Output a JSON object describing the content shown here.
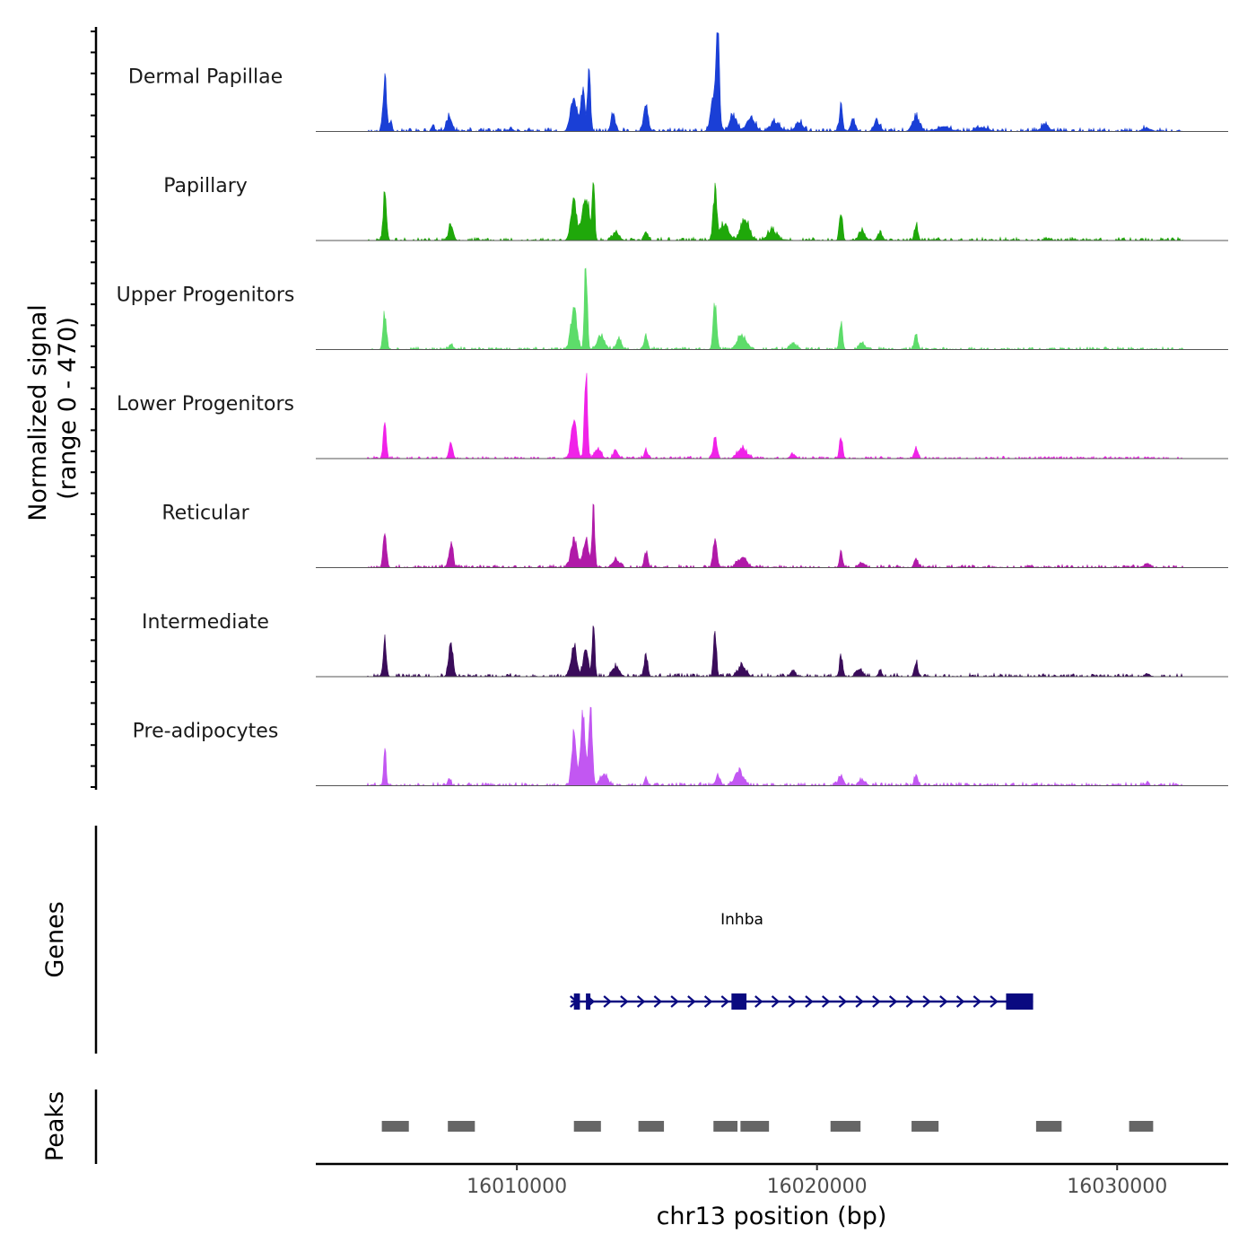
{
  "chart_data": {
    "type": "area",
    "title": "",
    "y_axis_label_line1": "Normalized signal",
    "y_axis_label_line2": "(range 0 - 470)",
    "ylim": [
      0,
      470
    ],
    "x_axis_label": "chr13 position (bp)",
    "xlim": [
      16003300,
      16033700
    ],
    "x_ticks": [
      {
        "value": 16010000,
        "label": "16010000"
      },
      {
        "value": 16020000,
        "label": "16020000"
      },
      {
        "value": 16030000,
        "label": "16030000"
      }
    ],
    "tracks": [
      {
        "name": "Dermal Papillae",
        "color": "#1a3fd6",
        "noise": 0.035,
        "seed": 11,
        "peaks": [
          [
            16005600,
            0.52,
            60
          ],
          [
            16005800,
            0.12,
            40
          ],
          [
            16007200,
            0.06,
            50
          ],
          [
            16007750,
            0.16,
            90
          ],
          [
            16009800,
            0.03,
            80
          ],
          [
            16011900,
            0.32,
            110
          ],
          [
            16012200,
            0.38,
            70
          ],
          [
            16012400,
            0.7,
            45
          ],
          [
            16013200,
            0.2,
            60
          ],
          [
            16014300,
            0.28,
            70
          ],
          [
            16016600,
            0.45,
            110
          ],
          [
            16016700,
            0.95,
            40
          ],
          [
            16017200,
            0.16,
            120
          ],
          [
            16017800,
            0.13,
            150
          ],
          [
            16018600,
            0.1,
            150
          ],
          [
            16019400,
            0.1,
            120
          ],
          [
            16020800,
            0.28,
            50
          ],
          [
            16021200,
            0.12,
            80
          ],
          [
            16022000,
            0.1,
            100
          ],
          [
            16023300,
            0.15,
            120
          ],
          [
            16024200,
            0.05,
            200
          ],
          [
            16025500,
            0.04,
            200
          ],
          [
            16027600,
            0.07,
            120
          ],
          [
            16031000,
            0.03,
            150
          ]
        ]
      },
      {
        "name": "Papillary",
        "color": "#1fa80a",
        "noise": 0.03,
        "seed": 23,
        "peaks": [
          [
            16005600,
            0.48,
            55
          ],
          [
            16007800,
            0.14,
            80
          ],
          [
            16011900,
            0.38,
            100
          ],
          [
            16012300,
            0.45,
            110
          ],
          [
            16012550,
            0.7,
            40
          ],
          [
            16013300,
            0.08,
            100
          ],
          [
            16014300,
            0.1,
            60
          ],
          [
            16016600,
            0.48,
            60
          ],
          [
            16016900,
            0.16,
            150
          ],
          [
            16017600,
            0.22,
            130
          ],
          [
            16018500,
            0.1,
            150
          ],
          [
            16020800,
            0.3,
            50
          ],
          [
            16021500,
            0.1,
            100
          ],
          [
            16022100,
            0.08,
            80
          ],
          [
            16023300,
            0.15,
            60
          ],
          [
            16027700,
            0.02,
            100
          ]
        ]
      },
      {
        "name": "Upper Progenitors",
        "color": "#5ddc6a",
        "noise": 0.025,
        "seed": 37,
        "peaks": [
          [
            16005600,
            0.38,
            55
          ],
          [
            16007800,
            0.06,
            60
          ],
          [
            16011900,
            0.42,
            100
          ],
          [
            16012300,
            0.92,
            45
          ],
          [
            16012800,
            0.15,
            120
          ],
          [
            16013400,
            0.12,
            80
          ],
          [
            16014300,
            0.12,
            60
          ],
          [
            16016600,
            0.46,
            60
          ],
          [
            16017500,
            0.14,
            150
          ],
          [
            16019200,
            0.06,
            100
          ],
          [
            16020800,
            0.3,
            50
          ],
          [
            16021500,
            0.06,
            100
          ],
          [
            16023300,
            0.15,
            60
          ]
        ]
      },
      {
        "name": "Lower Progenitors",
        "color": "#f022e8",
        "noise": 0.022,
        "seed": 41,
        "peaks": [
          [
            16005600,
            0.36,
            50
          ],
          [
            16007800,
            0.16,
            60
          ],
          [
            16011900,
            0.38,
            90
          ],
          [
            16012300,
            0.86,
            50
          ],
          [
            16012700,
            0.1,
            100
          ],
          [
            16013300,
            0.08,
            80
          ],
          [
            16014300,
            0.08,
            60
          ],
          [
            16016600,
            0.24,
            60
          ],
          [
            16017500,
            0.1,
            150
          ],
          [
            16019200,
            0.04,
            100
          ],
          [
            16020800,
            0.22,
            50
          ],
          [
            16023300,
            0.12,
            60
          ]
        ]
      },
      {
        "name": "Reticular",
        "color": "#b01aa8",
        "noise": 0.028,
        "seed": 53,
        "peaks": [
          [
            16005600,
            0.38,
            55
          ],
          [
            16007800,
            0.24,
            70
          ],
          [
            16011900,
            0.3,
            100
          ],
          [
            16012300,
            0.3,
            90
          ],
          [
            16012550,
            0.58,
            45
          ],
          [
            16013300,
            0.08,
            120
          ],
          [
            16014300,
            0.16,
            60
          ],
          [
            16016600,
            0.3,
            60
          ],
          [
            16017500,
            0.1,
            150
          ],
          [
            16020800,
            0.16,
            50
          ],
          [
            16021500,
            0.05,
            100
          ],
          [
            16023300,
            0.1,
            60
          ],
          [
            16031000,
            0.04,
            100
          ]
        ]
      },
      {
        "name": "Intermediate",
        "color": "#3a0c5a",
        "noise": 0.03,
        "seed": 67,
        "peaks": [
          [
            16005600,
            0.4,
            50
          ],
          [
            16007800,
            0.36,
            70
          ],
          [
            16011900,
            0.32,
            100
          ],
          [
            16012300,
            0.28,
            80
          ],
          [
            16012550,
            0.58,
            40
          ],
          [
            16013300,
            0.1,
            110
          ],
          [
            16014300,
            0.22,
            60
          ],
          [
            16016600,
            0.42,
            50
          ],
          [
            16017500,
            0.12,
            130
          ],
          [
            16019200,
            0.06,
            80
          ],
          [
            16020800,
            0.22,
            50
          ],
          [
            16021400,
            0.08,
            100
          ],
          [
            16022100,
            0.05,
            60
          ],
          [
            16023300,
            0.14,
            60
          ],
          [
            16031000,
            0.03,
            80
          ]
        ]
      },
      {
        "name": "Pre-adipocytes",
        "color": "#c257f2",
        "noise": 0.03,
        "seed": 79,
        "peaks": [
          [
            16005600,
            0.4,
            40
          ],
          [
            16007750,
            0.08,
            50
          ],
          [
            16011900,
            0.55,
            70
          ],
          [
            16012200,
            0.68,
            80
          ],
          [
            16012450,
            0.8,
            60
          ],
          [
            16012900,
            0.12,
            120
          ],
          [
            16014300,
            0.08,
            50
          ],
          [
            16016700,
            0.1,
            80
          ],
          [
            16017400,
            0.14,
            150
          ],
          [
            16020800,
            0.1,
            80
          ],
          [
            16021500,
            0.06,
            100
          ],
          [
            16023300,
            0.1,
            60
          ],
          [
            16031000,
            0.03,
            60
          ]
        ]
      }
    ],
    "genes": [
      {
        "name": "Inhba",
        "strand": "+",
        "start": 16011800,
        "end": 16027200,
        "exons": [
          [
            16011900,
            16012100
          ],
          [
            16012300,
            16012450
          ],
          [
            16017150,
            16017650
          ],
          [
            16026300,
            16027200
          ]
        ]
      }
    ],
    "peak_regions": [
      [
        16005500,
        16006400
      ],
      [
        16007700,
        16008600
      ],
      [
        16011900,
        16012800
      ],
      [
        16014050,
        16014900
      ],
      [
        16016550,
        16017350
      ],
      [
        16017450,
        16018400
      ],
      [
        16020450,
        16021450
      ],
      [
        16023150,
        16024050
      ],
      [
        16027300,
        16028150
      ],
      [
        16030400,
        16031200
      ]
    ],
    "panel_labels": {
      "genes": "Genes",
      "peaks": "Peaks"
    }
  }
}
